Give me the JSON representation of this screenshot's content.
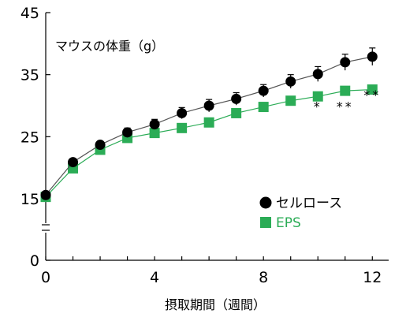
{
  "chart_data": {
    "type": "line",
    "title": "マウスの体重（g）",
    "xlabel": "摂取期間（週間）",
    "ylabel": "",
    "xlim": [
      0,
      12.6
    ],
    "ylim": [
      0,
      45
    ],
    "axis_break": true,
    "x_ticks": [
      0,
      4,
      8,
      12
    ],
    "x_tick_labels": [
      "0",
      "4",
      "8",
      "12"
    ],
    "y_ticks": [
      0,
      15,
      25,
      35,
      45
    ],
    "y_tick_labels": [
      "0",
      "15",
      "25",
      "35",
      "45"
    ],
    "grid": false,
    "legend_position": "center-right",
    "x": [
      0,
      1,
      2,
      3,
      4,
      5,
      6,
      7,
      8,
      9,
      10,
      11,
      12
    ],
    "series": [
      {
        "name": "セルロース",
        "marker": "circle",
        "color": "#000000",
        "line_color": "#555555",
        "values": [
          15.6,
          20.9,
          23.7,
          25.7,
          27.0,
          28.8,
          30.0,
          31.1,
          32.4,
          33.9,
          35.1,
          37.0,
          37.9
        ],
        "errors": [
          0.3,
          0.5,
          0.5,
          0.7,
          0.8,
          0.9,
          1.0,
          1.0,
          1.0,
          1.1,
          1.2,
          1.3,
          1.4
        ]
      },
      {
        "name": "EPS",
        "marker": "square",
        "color": "#2bac56",
        "line_color": "#2bac56",
        "values": [
          15.3,
          19.9,
          22.9,
          24.8,
          25.6,
          26.4,
          27.3,
          28.8,
          29.8,
          30.8,
          31.5,
          32.4,
          32.6
        ],
        "errors": [
          0.3,
          0.4,
          0.4,
          0.4,
          0.4,
          0.5,
          0.5,
          0.5,
          0.5,
          0.5,
          0.5,
          0.5,
          0.5
        ]
      }
    ],
    "annotations": [
      {
        "x": 10,
        "y": 29.2,
        "text": "*"
      },
      {
        "x": 11,
        "y": 29.2,
        "text": "**"
      },
      {
        "x": 12,
        "y": 31.0,
        "text": "**"
      }
    ]
  }
}
